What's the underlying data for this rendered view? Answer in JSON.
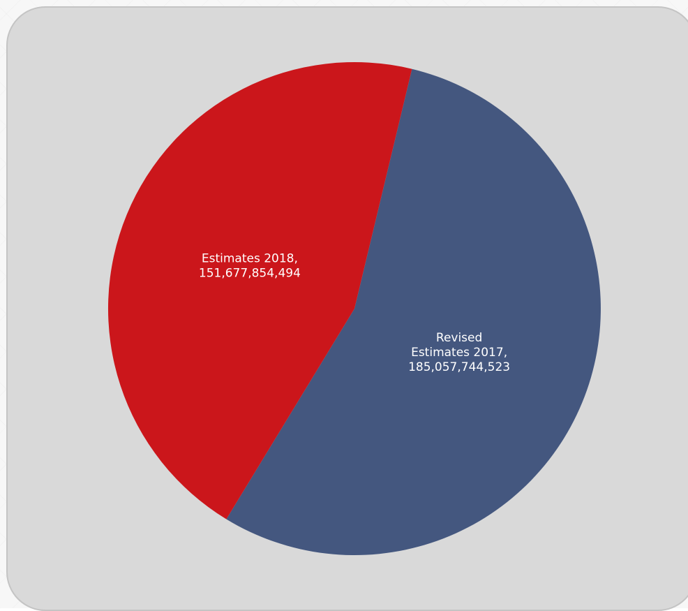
{
  "chart_data": {
    "type": "pie",
    "slices": [
      {
        "name": "Revised Estimates 2017",
        "value": 185057744523,
        "label_lines": [
          "Revised",
          "Estimates 2017,",
          "185,057,744,523"
        ],
        "color": "#44577f"
      },
      {
        "name": "Estimates 2018",
        "value": 151677854494,
        "label_lines": [
          "Estimates 2018,",
          "151,677,854,494"
        ],
        "color": "#cb161b"
      }
    ],
    "legend": "none",
    "background": "#d9d9d9"
  }
}
